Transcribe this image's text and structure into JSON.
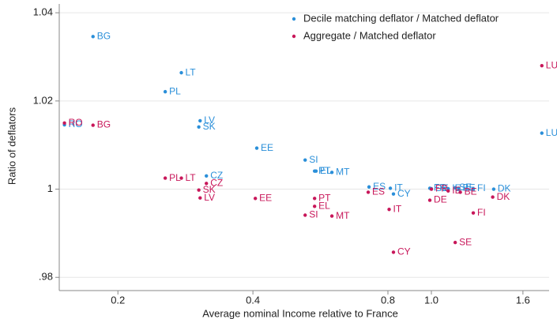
{
  "chart_data": {
    "type": "scatter",
    "x_label": "Average nominal Income relative to France",
    "y_label": "Ratio of deflators",
    "xscale": "log",
    "grid": true,
    "legend": "top right",
    "xlim": [
      0.148,
      1.83
    ],
    "ylim": [
      0.977,
      1.042
    ],
    "xticks": [
      0.2,
      0.4,
      0.8,
      {
        "value": 1.0,
        "label": "1.0"
      },
      1.6
    ],
    "yticks": [
      {
        "value": 0.98,
        "label": ".98"
      },
      1,
      1.02,
      1.04
    ],
    "series": [
      {
        "name": "Decile matching deflator / Matched deflator",
        "color": "#2a8fd9",
        "labels": [
          "BG",
          "LT",
          "PL",
          "LV",
          "SK",
          "RO",
          "EE",
          "SI",
          "PT",
          "EL",
          "MT",
          "CZ",
          "ES",
          "IT",
          "CY",
          "FR",
          "DE",
          "IE",
          "BE",
          "SE",
          "FI",
          "DK",
          "LU"
        ],
        "x": [
          0.176,
          0.277,
          0.255,
          0.305,
          0.303,
          0.152,
          0.408,
          0.523,
          0.549,
          0.553,
          0.6,
          0.315,
          0.726,
          0.81,
          0.823,
          0.992,
          1.0,
          1.09,
          1.15,
          1.13,
          1.24,
          1.377,
          1.763
        ],
        "y": [
          1.0346,
          1.0264,
          1.0221,
          1.0155,
          1.0141,
          1.0146,
          1.0093,
          1.0066,
          1.0041,
          1.0041,
          1.0038,
          1.003,
          1.0005,
          1.0002,
          0.9989,
          1.0002,
          1.0001,
          1.0001,
          1.0002,
          1.0003,
          1.0001,
          1.0,
          1.0127
        ]
      },
      {
        "name": "Aggregate / Matched deflator",
        "color": "#c8175a",
        "labels": [
          "LU",
          "RO",
          "BG",
          "PL",
          "LT",
          "CZ",
          "SK",
          "LV",
          "EE",
          "PT",
          "EL",
          "SI",
          "MT",
          "ES",
          "IT",
          "CY",
          "DE",
          "FR",
          "IE",
          "BE",
          "FI",
          "SE",
          "DK"
        ],
        "x": [
          1.763,
          0.152,
          0.176,
          0.255,
          0.277,
          0.315,
          0.303,
          0.305,
          0.405,
          0.549,
          0.549,
          0.523,
          0.6,
          0.723,
          0.805,
          0.823,
          0.992,
          1.0,
          1.09,
          1.16,
          1.24,
          1.13,
          1.37
        ],
        "y": [
          1.028,
          1.015,
          1.0145,
          1.0025,
          1.0025,
          1.0013,
          0.9998,
          0.998,
          0.9979,
          0.9979,
          0.9961,
          0.9941,
          0.9939,
          0.9993,
          0.9954,
          0.9857,
          0.9975,
          1.0,
          0.9996,
          0.9993,
          0.9946,
          0.9879,
          0.9982
        ]
      }
    ]
  }
}
